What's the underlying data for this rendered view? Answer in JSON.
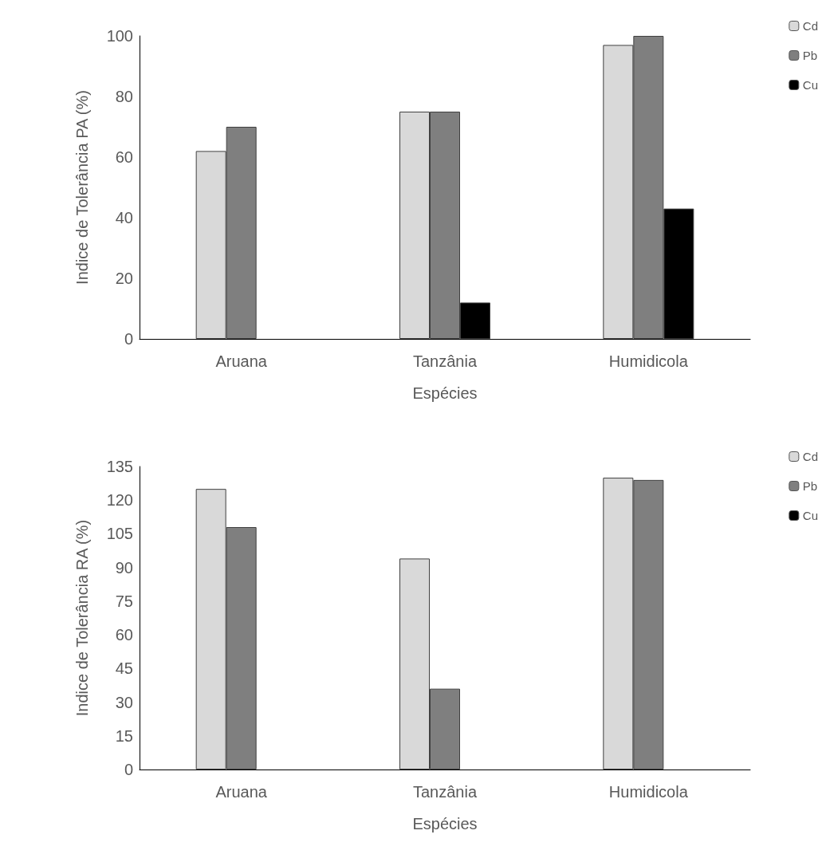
{
  "chart_data": [
    {
      "type": "bar",
      "categories": [
        "Aruana",
        "Tanzânia",
        "Humidicola"
      ],
      "xlabel": "Espécies",
      "ylabel": "Indice de Tolerância PA (%)",
      "ylim": [
        0,
        100
      ],
      "yticks": [
        0,
        20,
        40,
        60,
        80,
        100
      ],
      "grid": false,
      "legend": "top right",
      "series": [
        {
          "name": "Cd",
          "color": "#d9d9d9",
          "values": [
            62,
            75,
            97
          ]
        },
        {
          "name": "Pb",
          "color": "#7f7f7f",
          "values": [
            70,
            75,
            100
          ]
        },
        {
          "name": "Cu",
          "color": "#000000",
          "values": [
            null,
            12,
            43
          ]
        }
      ]
    },
    {
      "type": "bar",
      "categories": [
        "Aruana",
        "Tanzânia",
        "Humidicola"
      ],
      "xlabel": "Espécies",
      "ylabel": "Indice de Tolerância RA (%)",
      "ylim": [
        0,
        135
      ],
      "yticks": [
        0,
        15,
        30,
        45,
        60,
        75,
        90,
        105,
        120,
        135
      ],
      "grid": false,
      "legend": "top right",
      "series": [
        {
          "name": "Cd",
          "color": "#d9d9d9",
          "values": [
            125,
            94,
            130
          ]
        },
        {
          "name": "Pb",
          "color": "#7f7f7f",
          "values": [
            108,
            36,
            129
          ]
        },
        {
          "name": "Cu",
          "color": "#000000",
          "values": [
            null,
            null,
            null
          ]
        }
      ]
    }
  ]
}
